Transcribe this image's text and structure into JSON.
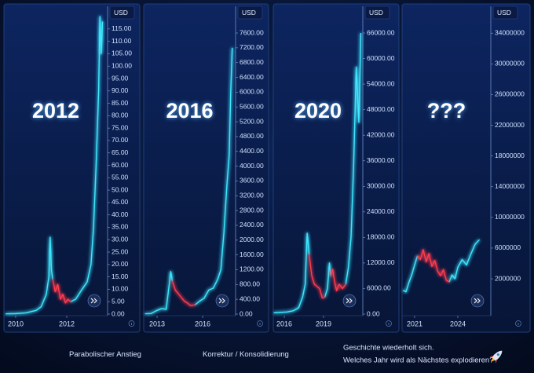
{
  "chart_data": [
    {
      "type": "line",
      "title": "2012",
      "currency": "USD",
      "x": [
        2009.6,
        2010.0,
        2010.4,
        2010.8,
        2011.0,
        2011.2,
        2011.3,
        2011.35,
        2011.4,
        2011.45,
        2011.55,
        2011.65,
        2011.75,
        2011.85,
        2011.95,
        2012.05,
        2012.15,
        2012.35,
        2012.6,
        2012.8,
        2012.95,
        2013.05,
        2013.15,
        2013.25,
        2013.3,
        2013.35,
        2013.4
      ],
      "series": [
        {
          "color": "#3fe6ff",
          "values": [
            0.1,
            0.2,
            0.5,
            1.5,
            3,
            8,
            15,
            31,
            18,
            14,
            null,
            null,
            null,
            null,
            null,
            null,
            5,
            6,
            10,
            13,
            20,
            35,
            60,
            90,
            120,
            105,
            118
          ]
        },
        {
          "color": "#ff3b4e",
          "values": [
            null,
            null,
            null,
            null,
            null,
            null,
            null,
            null,
            null,
            14,
            9,
            12,
            6,
            8,
            4.5,
            6,
            5,
            null,
            null,
            null,
            null,
            null,
            null,
            null,
            null,
            null,
            null
          ]
        }
      ],
      "xlim": [
        2009.54,
        2013.6
      ],
      "xticks": [
        2010,
        2012
      ],
      "ylim": [
        0,
        123.5
      ],
      "yticks": [
        {
          "value": 0,
          "label": "0.00"
        },
        {
          "value": 5,
          "label": "5.00"
        },
        {
          "value": 10,
          "label": "10.00"
        },
        {
          "value": 15,
          "label": "15.00"
        },
        {
          "value": 20,
          "label": "20.00"
        },
        {
          "value": 25,
          "label": "25.00"
        },
        {
          "value": 30,
          "label": "30.00"
        },
        {
          "value": 35,
          "label": "35.00"
        },
        {
          "value": 40,
          "label": "40.00"
        },
        {
          "value": 45,
          "label": "45.00"
        },
        {
          "value": 50,
          "label": "50.00"
        },
        {
          "value": 55,
          "label": "55.00"
        },
        {
          "value": 60,
          "label": "60.00"
        },
        {
          "value": 65,
          "label": "65.00"
        },
        {
          "value": 70,
          "label": "70.00"
        },
        {
          "value": 75,
          "label": "75.00"
        },
        {
          "value": 80,
          "label": "80.00"
        },
        {
          "value": 85,
          "label": "85.00"
        },
        {
          "value": 90,
          "label": "90.00"
        },
        {
          "value": 95,
          "label": "95.00"
        },
        {
          "value": 100,
          "label": "100.00"
        },
        {
          "value": 105,
          "label": "105.00"
        },
        {
          "value": 110,
          "label": "110.00"
        },
        {
          "value": 115,
          "label": "115.00"
        }
      ]
    },
    {
      "type": "line",
      "title": "2016",
      "currency": "USD",
      "x": [
        2012.2,
        2012.6,
        2013.0,
        2013.3,
        2013.6,
        2013.8,
        2013.9,
        2014.0,
        2014.2,
        2014.4,
        2014.6,
        2014.8,
        2015.0,
        2015.2,
        2015.5,
        2015.8,
        2016.1,
        2016.4,
        2016.7,
        2017.0,
        2017.2,
        2017.4,
        2017.6,
        2017.75,
        2017.85,
        2017.95
      ],
      "series": [
        {
          "color": "#3fe6ff",
          "values": [
            10,
            15,
            100,
            150,
            130,
            800,
            1150,
            900,
            null,
            null,
            null,
            null,
            null,
            null,
            250,
            350,
            430,
            650,
            700,
            950,
            1200,
            2200,
            3500,
            4300,
            6000,
            7200
          ]
        },
        {
          "color": "#ff3b4e",
          "values": [
            null,
            null,
            null,
            null,
            null,
            null,
            null,
            900,
            650,
            550,
            450,
            350,
            300,
            230,
            250,
            null,
            null,
            null,
            null,
            null,
            null,
            null,
            null,
            null,
            null,
            null
          ]
        }
      ],
      "xlim": [
        2012.12,
        2018.17
      ],
      "xticks": [
        2013,
        2016
      ],
      "ylim": [
        0,
        8280
      ],
      "yticks": [
        {
          "value": 0,
          "label": "0.00"
        },
        {
          "value": 400,
          "label": "400.00"
        },
        {
          "value": 800,
          "label": "800.00"
        },
        {
          "value": 1200,
          "label": "1200.00"
        },
        {
          "value": 1600,
          "label": "1600.00"
        },
        {
          "value": 2000,
          "label": "2000.00"
        },
        {
          "value": 2400,
          "label": "2400.00"
        },
        {
          "value": 2800,
          "label": "2800.00"
        },
        {
          "value": 3200,
          "label": "3200.00"
        },
        {
          "value": 3600,
          "label": "3600.00"
        },
        {
          "value": 4000,
          "label": "4000.00"
        },
        {
          "value": 4400,
          "label": "4400.00"
        },
        {
          "value": 4800,
          "label": "4800.00"
        },
        {
          "value": 5200,
          "label": "5200.00"
        },
        {
          "value": 5600,
          "label": "5600.00"
        },
        {
          "value": 6000,
          "label": "6000.00"
        },
        {
          "value": 6400,
          "label": "6400.00"
        },
        {
          "value": 6800,
          "label": "6800.00"
        },
        {
          "value": 7200,
          "label": "7200.00"
        },
        {
          "value": 7600,
          "label": "7600.00"
        }
      ]
    },
    {
      "type": "line",
      "title": "2020",
      "currency": "USD",
      "x": [
        2015.2,
        2015.7,
        2016.2,
        2016.7,
        2017.1,
        2017.4,
        2017.6,
        2017.75,
        2017.9,
        2018.1,
        2018.3,
        2018.5,
        2018.7,
        2018.9,
        2019.1,
        2019.3,
        2019.45,
        2019.55,
        2019.7,
        2019.85,
        2020.0,
        2020.2,
        2020.45,
        2020.7,
        2020.9,
        2021.1,
        2021.3,
        2021.5,
        2021.7,
        2021.85
      ],
      "series": [
        {
          "color": "#3fe6ff",
          "values": [
            300,
            400,
            500,
            800,
            1500,
            4000,
            7000,
            19000,
            14000,
            null,
            null,
            null,
            null,
            null,
            4000,
            6000,
            12000,
            9000,
            null,
            null,
            null,
            null,
            null,
            7000,
            11000,
            18000,
            35000,
            58000,
            45000,
            66000
          ]
        },
        {
          "color": "#ff3b4e",
          "values": [
            null,
            null,
            null,
            null,
            null,
            null,
            null,
            null,
            14000,
            9000,
            7000,
            6500,
            6000,
            3800,
            4000,
            null,
            null,
            9000,
            10500,
            7500,
            5500,
            7000,
            6000,
            7000,
            null,
            null,
            null,
            null,
            null,
            null
          ]
        }
      ],
      "xlim": [
        2015.16,
        2022.0
      ],
      "xticks": [
        2016,
        2019
      ],
      "ylim": [
        0,
        71900
      ],
      "yticks": [
        {
          "value": 0,
          "label": "0.00"
        },
        {
          "value": 6000,
          "label": "6000.00"
        },
        {
          "value": 12000,
          "label": "12000.00"
        },
        {
          "value": 18000,
          "label": "18000.00"
        },
        {
          "value": 24000,
          "label": "24000.00"
        },
        {
          "value": 30000,
          "label": "30000.00"
        },
        {
          "value": 36000,
          "label": "36000.00"
        },
        {
          "value": 42000,
          "label": "42000.00"
        },
        {
          "value": 48000,
          "label": "48000.00"
        },
        {
          "value": 54000,
          "label": "54000.00"
        },
        {
          "value": 60000,
          "label": "60000.00"
        },
        {
          "value": 66000,
          "label": "66000.00"
        }
      ]
    },
    {
      "type": "line",
      "title": "???",
      "currency": "USD",
      "x": [
        2020.2,
        2020.4,
        2020.6,
        2020.8,
        2021.0,
        2021.2,
        2021.4,
        2021.6,
        2021.8,
        2022.0,
        2022.2,
        2022.4,
        2022.6,
        2022.8,
        2023.0,
        2023.2,
        2023.4,
        2023.6,
        2023.8,
        2024.0,
        2024.3,
        2024.6,
        2024.9,
        2025.2,
        2025.5
      ],
      "series": [
        {
          "color": "#3fe6ff",
          "values": [
            500000,
            300000,
            1500000,
            2500000,
            3800000,
            5000000,
            null,
            null,
            null,
            null,
            null,
            null,
            null,
            null,
            null,
            null,
            1600000,
            2500000,
            2000000,
            3500000,
            4500000,
            3800000,
            5200000,
            6500000,
            7100000
          ]
        },
        {
          "color": "#ff3b4e",
          "values": [
            null,
            null,
            null,
            null,
            null,
            5000000,
            4500000,
            5800000,
            4200000,
            5300000,
            3600000,
            4400000,
            3000000,
            2400000,
            3200000,
            1800000,
            1600000,
            null,
            null,
            null,
            null,
            null,
            null,
            null,
            null
          ]
        }
      ],
      "xlim": [
        2020.13,
        2026.29
      ],
      "xticks": [
        2021,
        2024
      ],
      "ylim": [
        -2600000,
        37300000
      ],
      "yticks": [
        2000000,
        6000000,
        10000000,
        14000000,
        18000000,
        22000000,
        26000000,
        30000000,
        34000000
      ]
    }
  ],
  "legend": [
    {
      "name": "Parabolischer Anstieg",
      "color": "#3fe6ff"
    },
    {
      "name": "Korrektur / Konsolidierung",
      "color": "#ff3b4e"
    }
  ],
  "caption": [
    "Geschichte wiederholt sich.",
    "Welches Jahr wird als Nächstes explodieren?"
  ]
}
